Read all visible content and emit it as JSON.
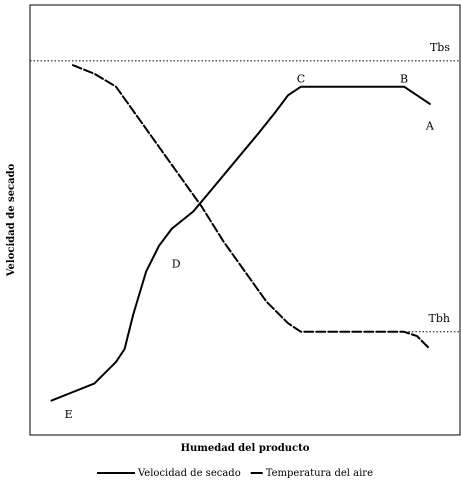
{
  "chart_data": {
    "type": "line",
    "title": "",
    "xlabel": "Humedad del producto",
    "ylabel": "Velocidad de secado",
    "xlim": [
      0,
      100
    ],
    "ylim": [
      0,
      100
    ],
    "ticks": "none",
    "grid": false,
    "legend_position": "bottom",
    "series": [
      {
        "name": "Velocidad de secado",
        "style": "solid",
        "color": "#000000",
        "points": [
          [
            5,
            8
          ],
          [
            10,
            10
          ],
          [
            15,
            12
          ],
          [
            20,
            17
          ],
          [
            22,
            20
          ],
          [
            24,
            28
          ],
          [
            27,
            38
          ],
          [
            30,
            44
          ],
          [
            33,
            48
          ],
          [
            38,
            52
          ],
          [
            43,
            58
          ],
          [
            48,
            64
          ],
          [
            53,
            70
          ],
          [
            57,
            75
          ],
          [
            60,
            79
          ],
          [
            63,
            81
          ],
          [
            67,
            81
          ],
          [
            75,
            81
          ],
          [
            87,
            81
          ],
          [
            90,
            79
          ],
          [
            93,
            77
          ]
        ]
      },
      {
        "name": "Temperatura del aire",
        "style": "dashed",
        "color": "#000000",
        "points": [
          [
            10,
            86
          ],
          [
            15,
            84
          ],
          [
            20,
            81
          ],
          [
            25,
            74
          ],
          [
            30,
            67
          ],
          [
            35,
            60
          ],
          [
            40,
            53
          ],
          [
            45,
            45
          ],
          [
            50,
            38
          ],
          [
            55,
            31
          ],
          [
            60,
            26
          ],
          [
            63,
            24
          ],
          [
            70,
            24
          ],
          [
            80,
            24
          ],
          [
            87,
            24
          ],
          [
            90,
            23
          ],
          [
            93,
            20
          ]
        ]
      }
    ],
    "point_labels": [
      {
        "text": "A",
        "x": 93,
        "y": 71
      },
      {
        "text": "B",
        "x": 87,
        "y": 82
      },
      {
        "text": "C",
        "x": 63,
        "y": 82
      },
      {
        "text": "D",
        "x": 34,
        "y": 39
      },
      {
        "text": "E",
        "x": 9,
        "y": 4
      }
    ],
    "reference_lines": [
      {
        "label": "Tbs",
        "y": 87,
        "style": "dotted"
      },
      {
        "label": "Tbh",
        "y": 24,
        "x_start": 88,
        "style": "dotted"
      }
    ],
    "legend": [
      {
        "label": "Velocidad de secado",
        "style": "solid"
      },
      {
        "label": "Temperatura del aire",
        "style": "dashed"
      }
    ]
  }
}
